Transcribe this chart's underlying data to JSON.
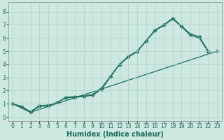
{
  "xlabel": "Humidex (Indice chaleur)",
  "bg_color": "#cce8e0",
  "line_color": "#1a6b5a",
  "grid_color": "#aad0c8",
  "xlim": [
    -0.5,
    23.5
  ],
  "ylim": [
    -0.3,
    8.7
  ],
  "xticks": [
    0,
    1,
    2,
    3,
    4,
    5,
    6,
    7,
    8,
    9,
    10,
    11,
    12,
    13,
    14,
    15,
    16,
    17,
    18,
    19,
    20,
    21,
    22,
    23
  ],
  "yticks": [
    0,
    1,
    2,
    3,
    4,
    5,
    6,
    7,
    8
  ],
  "line1_x": [
    0,
    1,
    2,
    3,
    4,
    5,
    6,
    7,
    8,
    9,
    10,
    11,
    12,
    13,
    14,
    15,
    16,
    17,
    18,
    19,
    20,
    21,
    22
  ],
  "line1_y": [
    1.0,
    0.8,
    0.4,
    0.85,
    0.9,
    1.1,
    1.5,
    1.55,
    1.6,
    1.7,
    2.2,
    3.1,
    4.0,
    4.6,
    5.0,
    5.8,
    6.6,
    7.0,
    7.5,
    6.9,
    6.3,
    6.1,
    5.0
  ],
  "line2_x": [
    0,
    1,
    2,
    3,
    4,
    5,
    6,
    7,
    8,
    9,
    10,
    11,
    12,
    13,
    14,
    15,
    16,
    17,
    18,
    19,
    20,
    21,
    22
  ],
  "line2_y": [
    1.0,
    0.75,
    0.35,
    0.8,
    0.85,
    1.1,
    1.45,
    1.5,
    1.55,
    1.65,
    2.1,
    3.05,
    3.95,
    4.55,
    4.95,
    5.75,
    6.55,
    6.95,
    7.45,
    6.85,
    6.2,
    6.0,
    4.95
  ],
  "line3_x": [
    0,
    2,
    23
  ],
  "line3_y": [
    1.0,
    0.35,
    5.0
  ],
  "marker_size": 2.5,
  "line_width": 0.9,
  "tick_fontsize": 5.5,
  "xlabel_fontsize": 7.0
}
